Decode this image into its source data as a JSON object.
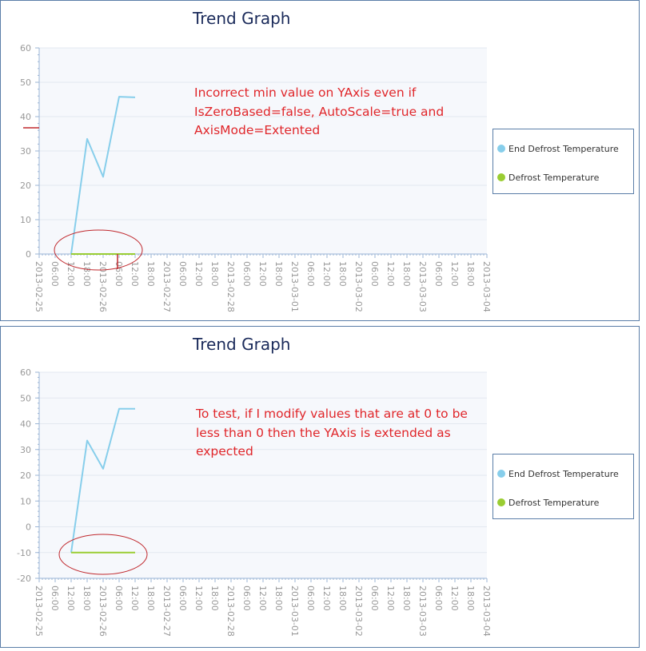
{
  "colors": {
    "end_defrost": "#87ceeb",
    "defrost": "#9acd32",
    "annotation": "#e0262a",
    "plot_bg": "#f6f8fc",
    "gridline": "#e3e8f0",
    "tick_text": "#999999",
    "title": "#1a2a5a",
    "border": "#5b7ea8"
  },
  "tick_labels": [
    "2013-02-25",
    "06:00",
    "12:00",
    "18:00",
    "2013-02-26",
    "06:00",
    "12:00",
    "18:00",
    "2013-02-27",
    "06:00",
    "12:00",
    "18:00",
    "2013-02-28",
    "06:00",
    "12:00",
    "18:00",
    "2013-03-01",
    "06:00",
    "12:00",
    "18:00",
    "2013-03-02",
    "06:00",
    "12:00",
    "18:00",
    "2013-03-03",
    "06:00",
    "12:00",
    "18:00",
    "2013-03-04"
  ],
  "chart_data": [
    {
      "type": "line",
      "title": "Trend Graph",
      "x_axis": {
        "min": "2013-02-25 00:00",
        "max": "2013-03-04 00:00",
        "tick_interval_hours": 6
      },
      "ylim": [
        0,
        60
      ],
      "y_ticks": [
        0,
        10,
        20,
        30,
        40,
        50,
        60
      ],
      "grid": true,
      "legend_position": "right",
      "series": [
        {
          "name": "End Defrost Temperature",
          "x": [
            "2013-02-25 12:00",
            "2013-02-25 18:00",
            "2013-02-26 00:00",
            "2013-02-26 06:00",
            "2013-02-26 12:00"
          ],
          "values": [
            0,
            33.5,
            22.5,
            45.8,
            45.6
          ]
        },
        {
          "name": "Defrost Temperature",
          "x": [
            "2013-02-25 12:00",
            "2013-02-26 12:00"
          ],
          "values": [
            0,
            0
          ]
        }
      ],
      "annotation": [
        "Incorrect min value on YAxis even if",
        "IsZeroBased=false, AutoScale=true and",
        "AxisMode=Extented"
      ]
    },
    {
      "type": "line",
      "title": "Trend Graph",
      "x_axis": {
        "min": "2013-02-25 00:00",
        "max": "2013-03-04 00:00",
        "tick_interval_hours": 6
      },
      "ylim": [
        -20,
        60
      ],
      "y_ticks": [
        -20,
        -10,
        0,
        10,
        20,
        30,
        40,
        50,
        60
      ],
      "grid": true,
      "legend_position": "right",
      "series": [
        {
          "name": "End Defrost Temperature",
          "x": [
            "2013-02-25 12:00",
            "2013-02-25 18:00",
            "2013-02-26 00:00",
            "2013-02-26 06:00",
            "2013-02-26 12:00"
          ],
          "values": [
            -10,
            33.5,
            22.5,
            45.8,
            45.8
          ]
        },
        {
          "name": "Defrost Temperature",
          "x": [
            "2013-02-25 12:00",
            "2013-02-26 12:00"
          ],
          "values": [
            -10,
            -10
          ]
        }
      ],
      "annotation": [
        "To test, if I modify values that are at 0 to be",
        "less than 0 then the YAxis is extended as",
        "expected"
      ]
    }
  ]
}
